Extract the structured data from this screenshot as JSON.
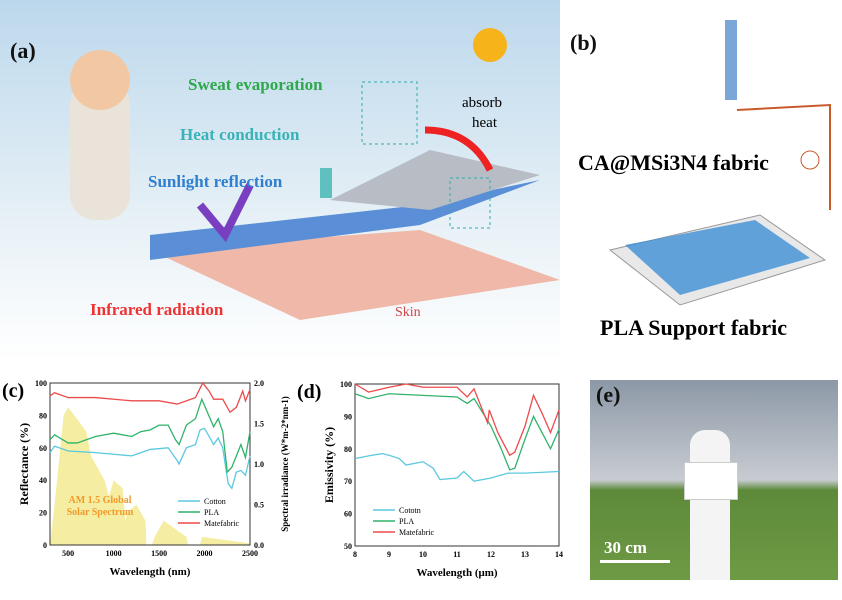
{
  "panels": {
    "a": "(a)",
    "b": "(b)",
    "c": "(c)",
    "d": "(d)",
    "e": "(e)"
  },
  "panel_a": {
    "sweat": "Sweat evaporation",
    "heat_conduction": "Heat conduction",
    "sunlight": "Sunlight reflection",
    "infrared": "Infrared radiation",
    "absorb": "absorb",
    "heat": "heat",
    "skin": "Skin"
  },
  "panel_b": {
    "fabric": "CA@MSi3N4 fabric",
    "support": "PLA Support fabric"
  },
  "panel_e": {
    "scale": "30 cm"
  },
  "colors": {
    "cotton": "#5bc8e0",
    "pla": "#2fb36b",
    "matefabric": "#ec4b4b",
    "solar": "#f3e88a"
  },
  "chart_data": [
    {
      "type": "line",
      "panel": "c",
      "xlabel": "Wavelength (nm)",
      "ylabel": "Reflectance (%)",
      "y2label": "Spectral irradiance (W*m-2*nm-1)",
      "xlim": [
        300,
        2500
      ],
      "ylim": [
        0,
        100
      ],
      "y2lim": [
        0,
        2.0
      ],
      "xticks": [
        500,
        1000,
        1500,
        2000,
        2500
      ],
      "yticks": [
        0,
        20,
        40,
        60,
        80,
        100
      ],
      "y2ticks": [
        "0.0",
        "0.5",
        "1.0",
        "1.5",
        "2.0"
      ],
      "legend": "bottom-right",
      "annotation": [
        "AM 1.5 Global",
        "Solar Spectrum"
      ],
      "series": [
        {
          "name": "Cotton",
          "x": [
            300,
            350,
            500,
            800,
            1000,
            1200,
            1300,
            1400,
            1600,
            1700,
            1720,
            1800,
            1900,
            1950,
            2000,
            2100,
            2150,
            2200,
            2260,
            2300,
            2350,
            2400,
            2450,
            2500
          ],
          "y": [
            57,
            61,
            58,
            57,
            56,
            55,
            57,
            59,
            60,
            52,
            50,
            60,
            62,
            71,
            72,
            62,
            66,
            60,
            38,
            35,
            45,
            46,
            43,
            55
          ]
        },
        {
          "name": "PLA",
          "x": [
            300,
            350,
            500,
            600,
            800,
            1000,
            1200,
            1300,
            1400,
            1500,
            1600,
            1680,
            1720,
            1800,
            1900,
            1970,
            2000,
            2100,
            2150,
            2200,
            2250,
            2300,
            2350,
            2400,
            2450,
            2500
          ],
          "y": [
            65,
            68,
            63,
            63,
            67,
            69,
            67,
            70,
            71,
            74,
            74,
            65,
            62,
            74,
            78,
            90,
            86,
            73,
            78,
            70,
            45,
            48,
            55,
            62,
            54,
            70
          ]
        },
        {
          "name": "Matefabric",
          "x": [
            300,
            350,
            500,
            800,
            1200,
            1500,
            1700,
            1900,
            1980,
            2050,
            2100,
            2200,
            2280,
            2350,
            2420,
            2450,
            2500
          ],
          "y": [
            92,
            94,
            91,
            91,
            89,
            89,
            87,
            91,
            100,
            95,
            90,
            90,
            82,
            85,
            95,
            89,
            96
          ]
        }
      ],
      "solar_spectrum": {
        "x": [
          300,
          350,
          450,
          500,
          700,
          750,
          800,
          900,
          950,
          1000,
          1100,
          1130,
          1150,
          1250,
          1350,
          1360,
          1420,
          1450,
          1550,
          1800,
          1820,
          1950,
          1970,
          2500
        ],
        "y": [
          0,
          0.5,
          1.6,
          1.7,
          1.4,
          1.1,
          1.0,
          0.8,
          0.6,
          0.8,
          0.7,
          0.3,
          0.4,
          0.5,
          0.3,
          0,
          0,
          0.1,
          0.3,
          0.1,
          0,
          0,
          0.1,
          0.02
        ]
      }
    },
    {
      "type": "line",
      "panel": "d",
      "xlabel": "Wavelength (μm)",
      "ylabel": "Emissivity (%)",
      "xlim": [
        8,
        14
      ],
      "ylim": [
        50,
        100
      ],
      "xticks": [
        8,
        9,
        10,
        11,
        12,
        13,
        14
      ],
      "yticks": [
        50,
        60,
        70,
        80,
        90,
        100
      ],
      "legend": "bottom-left",
      "series": [
        {
          "name": "Cototn",
          "x": [
            8,
            8.5,
            8.8,
            9,
            9.3,
            9.5,
            10,
            10.3,
            10.5,
            11,
            11.2,
            11.5,
            12,
            12.5,
            13,
            14
          ],
          "y": [
            77,
            78,
            78.5,
            78,
            77,
            75,
            76,
            74,
            70.5,
            71,
            73,
            70,
            71,
            72.5,
            72.5,
            73
          ]
        },
        {
          "name": "PLA",
          "x": [
            8,
            8.4,
            9,
            10,
            11,
            11.3,
            11.5,
            12,
            12.3,
            12.55,
            12.7,
            13,
            13.25,
            13.5,
            13.75,
            14
          ],
          "y": [
            97,
            95.5,
            97,
            96.5,
            96,
            94,
            95.5,
            87,
            80,
            73.5,
            74,
            83,
            90,
            85,
            80,
            86
          ]
        },
        {
          "name": "Matefabric",
          "x": [
            8,
            8.4,
            9,
            9.5,
            10,
            11,
            11.3,
            11.5,
            11.9,
            11.95,
            12.2,
            12.55,
            12.7,
            13,
            13.25,
            13.5,
            13.75,
            14
          ],
          "y": [
            100,
            97.5,
            99,
            100,
            99,
            99,
            96,
            98.5,
            88,
            92,
            85,
            78,
            79,
            87,
            96.5,
            91,
            85,
            92
          ]
        }
      ]
    }
  ]
}
